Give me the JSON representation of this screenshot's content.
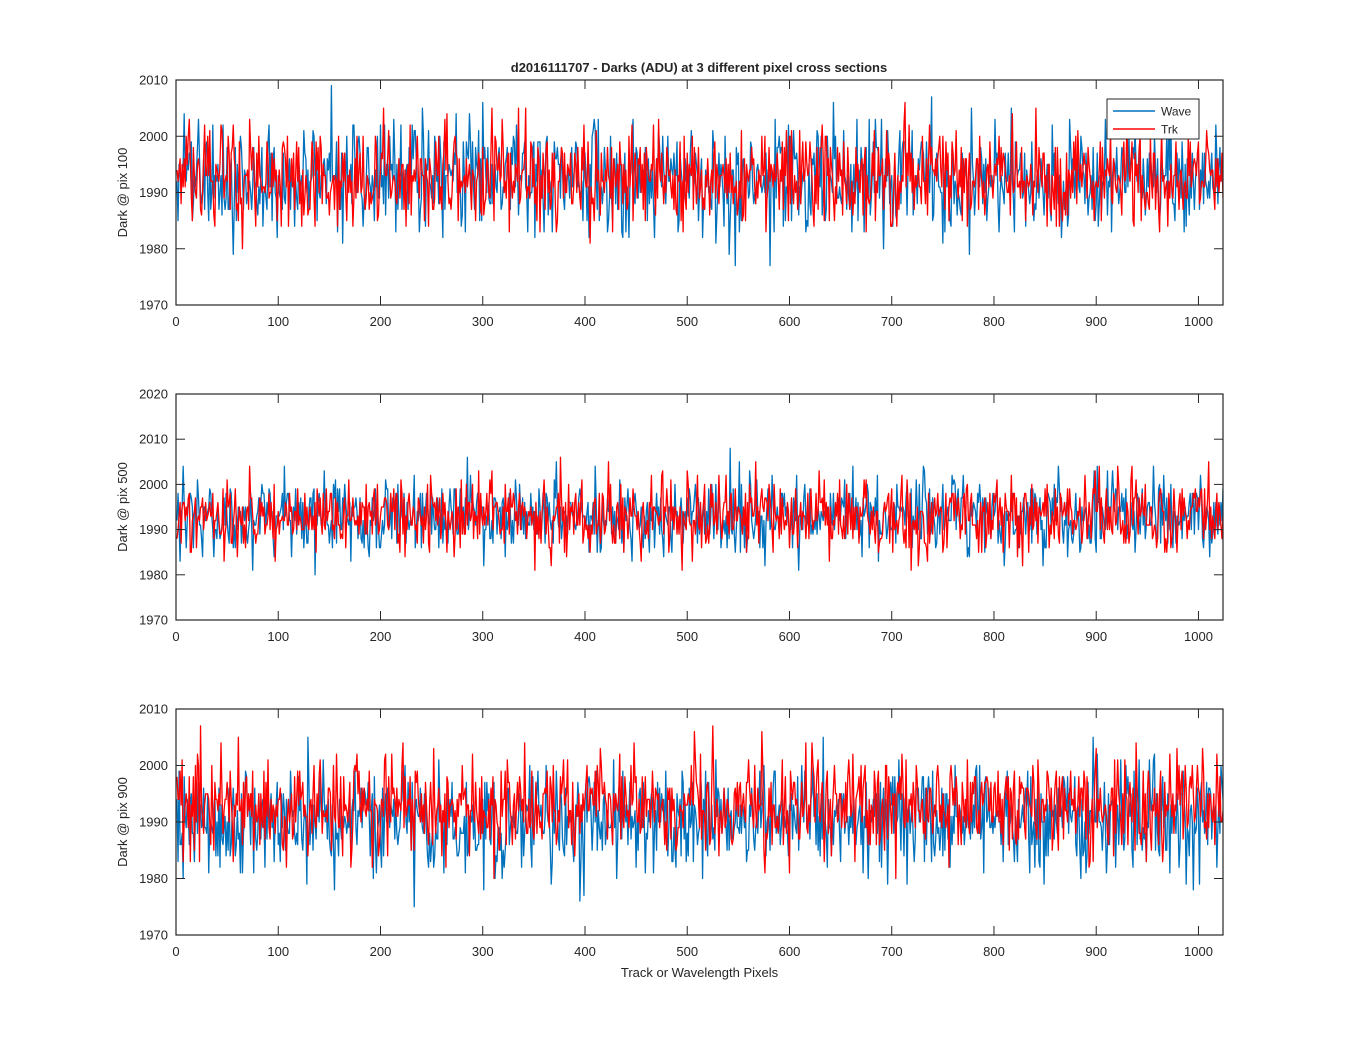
{
  "figure": {
    "title": "d2016111707 - Darks (ADU) at 3 different pixel cross sections",
    "legend": [
      "Wave",
      "Trk"
    ],
    "colors": {
      "wave": "#0072BD",
      "trk": "#FF0000",
      "axis": "#262626",
      "background": "#FFFFFF"
    }
  },
  "chart_data": [
    {
      "type": "line",
      "ylabel": "Dark @ pix 100",
      "xlabel": "",
      "xlim": [
        0,
        1024
      ],
      "ylim": [
        1970,
        2010
      ],
      "xticks": [
        "0",
        "100",
        "200",
        "300",
        "400",
        "500",
        "600",
        "700",
        "800",
        "900",
        "1000"
      ],
      "yticks": [
        "1970",
        "1980",
        "1990",
        "2000",
        "2010"
      ],
      "legend_position": "top-right",
      "series": [
        {
          "name": "Wave",
          "color": "#0072BD",
          "n_points": 1024,
          "mean": 1992.5,
          "sd": 4.8,
          "min": 1977,
          "max": 2009
        },
        {
          "name": "Trk",
          "color": "#FF0000",
          "n_points": 1024,
          "mean": 1992.5,
          "sd": 4.5,
          "min": 1974,
          "max": 2008
        }
      ]
    },
    {
      "type": "line",
      "ylabel": "Dark @ pix 500",
      "xlabel": "",
      "xlim": [
        0,
        1024
      ],
      "ylim": [
        1970,
        2020
      ],
      "xticks": [
        "0",
        "100",
        "200",
        "300",
        "400",
        "500",
        "600",
        "700",
        "800",
        "900",
        "1000"
      ],
      "yticks": [
        "1970",
        "1980",
        "1990",
        "2000",
        "2010",
        "2020"
      ],
      "series": [
        {
          "name": "Wave",
          "color": "#0072BD",
          "n_points": 1024,
          "mean": 1993,
          "sd": 4.3,
          "min": 1977,
          "max": 2011
        },
        {
          "name": "Trk",
          "color": "#FF0000",
          "n_points": 1024,
          "mean": 1993,
          "sd": 4.3,
          "min": 1977,
          "max": 2010
        }
      ]
    },
    {
      "type": "line",
      "ylabel": "Dark @ pix 900",
      "xlabel": "Track or Wavelength Pixels",
      "xlim": [
        0,
        1024
      ],
      "ylim": [
        1970,
        2010
      ],
      "xticks": [
        "0",
        "100",
        "200",
        "300",
        "400",
        "500",
        "600",
        "700",
        "800",
        "900",
        "1000"
      ],
      "yticks": [
        "1970",
        "1980",
        "1990",
        "2000",
        "2010"
      ],
      "series": [
        {
          "name": "Wave",
          "color": "#0072BD",
          "n_points": 1024,
          "mean": 1990.5,
          "sd": 4.6,
          "min": 1973,
          "max": 2010
        },
        {
          "name": "Trk",
          "color": "#FF0000",
          "n_points": 1024,
          "mean": 1993,
          "sd": 4.5,
          "min": 1979,
          "max": 2009
        }
      ]
    }
  ]
}
